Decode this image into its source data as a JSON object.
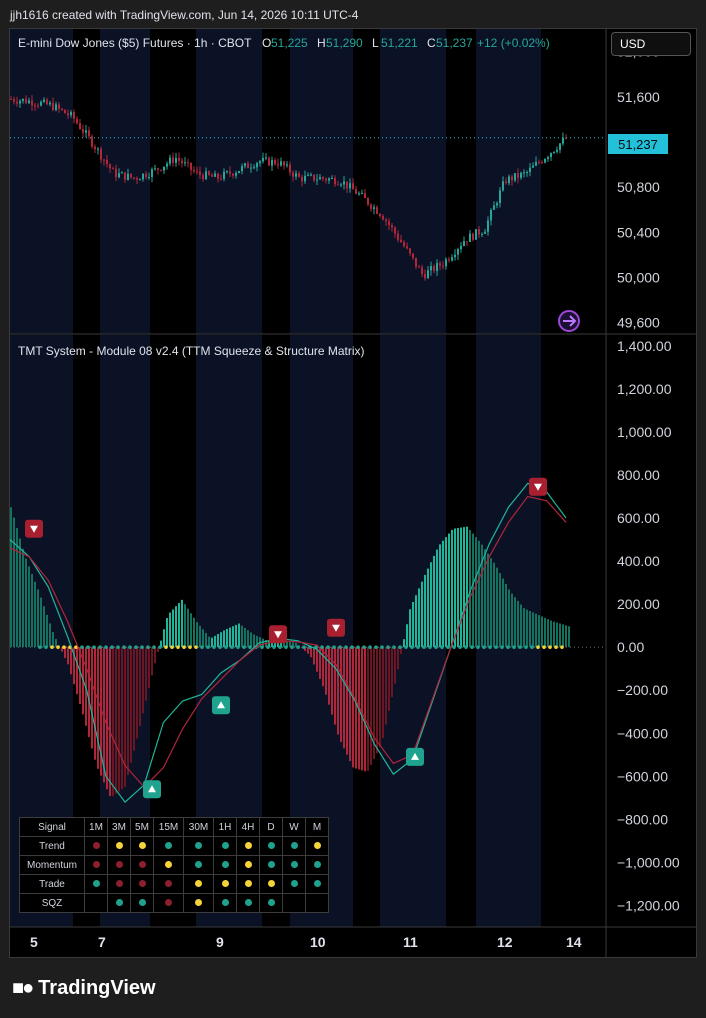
{
  "header": {
    "credit": "jjh1616 created with TradingView.com, Jun 14, 2026 10:11 UTC-4"
  },
  "main_chart": {
    "title": "E-mini Dow Jones ($5) Futures · 1h · CBOT",
    "ohlc": [
      {
        "k": "O",
        "v": "51,225"
      },
      {
        "k": "H",
        "v": "51,290"
      },
      {
        "k": "L",
        "v": "51,221"
      },
      {
        "k": "C",
        "v": "51,237"
      }
    ],
    "change": "+12 (+0.02%)",
    "currency": "USD",
    "last_price": "51,237",
    "y_ticks": [
      "52,000",
      "51,600",
      "51,200",
      "50,800",
      "50,400",
      "50,000",
      "49,600"
    ],
    "colors": {
      "up": "#26a69a",
      "down": "#b2263a",
      "last": "#22c1d9"
    }
  },
  "indicator": {
    "title": "TMT System - Module 08 v2.4 (TTM Squeeze & Structure Matrix)",
    "y_ticks": [
      "1,400.00",
      "1,200.00",
      "1,000.00",
      "800.00",
      "600.00",
      "400.00",
      "200.00",
      "0.00",
      "−200.00",
      "−400.00",
      "−600.00",
      "−800.00",
      "−1,000.00",
      "−1,200.00"
    ]
  },
  "x_ticks": [
    "5",
    "7",
    "9",
    "10",
    "11",
    "12",
    "14"
  ],
  "chart_data": [
    {
      "type": "line",
      "title": "E-mini Dow Jones ($5) Futures · 1h · CBOT",
      "x": [
        0,
        20,
        40,
        60,
        80,
        100,
        120,
        140,
        160,
        180,
        200,
        220,
        240,
        260,
        280,
        300,
        320,
        340,
        360,
        380,
        400,
        420,
        440,
        460,
        480,
        500,
        520,
        540
      ],
      "values": [
        51580,
        51560,
        51520,
        51420,
        51180,
        50920,
        50880,
        50950,
        51060,
        50920,
        50880,
        50950,
        51030,
        51020,
        50880,
        50880,
        50860,
        50720,
        50560,
        50300,
        50020,
        50130,
        50330,
        50430,
        50860,
        50920,
        51080,
        51240
      ],
      "ylim": [
        49500,
        52200
      ]
    },
    {
      "type": "bar",
      "title": "TMT System - Module 08 v2.4 (TTM Squeeze & Structure Matrix)",
      "series": [
        {
          "values": [
            650,
            420,
            250,
            60,
            -80,
            -300,
            -550,
            -700,
            -650,
            -380,
            -100,
            150,
            220,
            120,
            40,
            80,
            110,
            60,
            30,
            30,
            20,
            -40,
            -200,
            -420,
            -560,
            -580,
            -450,
            -150,
            180,
            330,
            470,
            550,
            560,
            480,
            380,
            260,
            180,
            150,
            120,
            100
          ]
        },
        {
          "values": [
            500,
            420,
            280,
            50,
            -200,
            -600,
            -720,
            -640,
            -350,
            -250,
            -220,
            -120,
            -60,
            20,
            40,
            30,
            -10,
            -100,
            -250,
            -450,
            -590,
            -520,
            -260,
            0,
            260,
            480,
            650,
            760,
            720,
            600
          ]
        },
        {
          "values": [
            460,
            420,
            310,
            120,
            -100,
            -350,
            -550,
            -650,
            -560,
            -380,
            -240,
            -150,
            -60,
            10,
            30,
            25,
            10,
            -80,
            -240,
            -420,
            -540,
            -500,
            -250,
            0,
            230,
            420,
            580,
            700,
            680,
            580
          ]
        }
      ],
      "ylim": [
        -1300,
        1450
      ]
    }
  ],
  "signal_table": {
    "headers": [
      "Signal",
      "1M",
      "3M",
      "5M",
      "15M",
      "30M",
      "1H",
      "4H",
      "D",
      "W",
      "M"
    ],
    "rows": [
      {
        "label": "Trend",
        "dots": [
          "r",
          "y",
          "y",
          "g",
          "g",
          "g",
          "y",
          "g",
          "g",
          "y"
        ]
      },
      {
        "label": "Momentum",
        "dots": [
          "r",
          "r",
          "r",
          "y",
          "g",
          "g",
          "y",
          "g",
          "g",
          "g"
        ]
      },
      {
        "label": "Trade",
        "dots": [
          "g",
          "r",
          "r",
          "r",
          "y",
          "y",
          "y",
          "y",
          "g",
          "g"
        ]
      },
      {
        "label": "SQZ",
        "dots": [
          "",
          "g",
          "g",
          "r",
          "y",
          "g",
          "g",
          "g",
          "",
          ""
        ]
      }
    ],
    "colors": {
      "r": "#8e1f2e",
      "y": "#f5d33a",
      "g": "#1fa38e"
    }
  },
  "footer": {
    "brand": "TradingView"
  }
}
